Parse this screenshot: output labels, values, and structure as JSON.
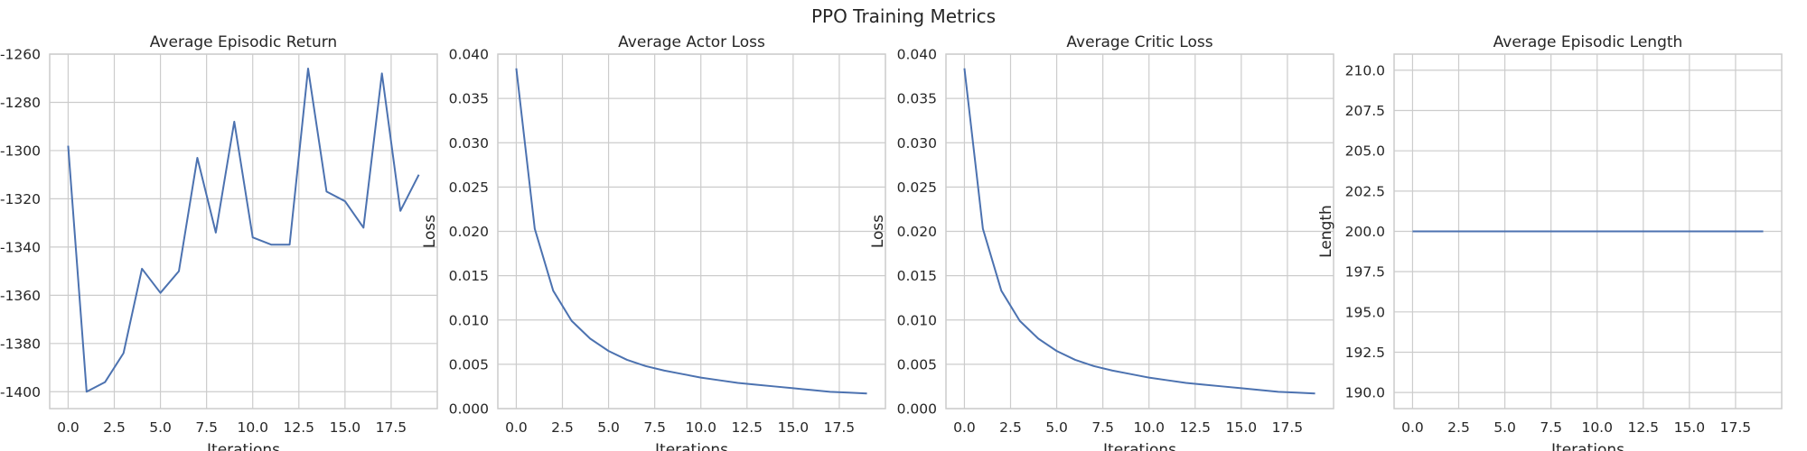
{
  "figure": {
    "title": "PPO Training Metrics"
  },
  "chart_data": [
    {
      "type": "line",
      "title": "Average Episodic Return",
      "xlabel": "Iterations",
      "ylabel": "",
      "x": [
        0,
        1,
        2,
        3,
        4,
        5,
        6,
        7,
        8,
        9,
        10,
        11,
        12,
        13,
        14,
        15,
        16,
        17,
        18,
        19
      ],
      "values": [
        -1298,
        -1400,
        -1396,
        -1384,
        -1349,
        -1359,
        -1350,
        -1303,
        -1334,
        -1288,
        -1336,
        -1339,
        -1339,
        -1266,
        -1317,
        -1321,
        -1332,
        -1268,
        -1325,
        -1310
      ],
      "xlim": [
        -1,
        20
      ],
      "ylim": [
        -1407,
        -1260
      ],
      "xticks": [
        0,
        2.5,
        5,
        7.5,
        10,
        12.5,
        15,
        17.5
      ],
      "xtick_labels": [
        "0.0",
        "2.5",
        "5.0",
        "7.5",
        "10.0",
        "12.5",
        "15.0",
        "17.5"
      ],
      "yticks": [
        -1260,
        -1280,
        -1300,
        -1320,
        -1340,
        -1360,
        -1380,
        -1400
      ],
      "ytick_labels": [
        "-1260",
        "-1280",
        "-1300",
        "-1320",
        "-1340",
        "-1360",
        "-1380",
        "-1400"
      ],
      "grid": true,
      "color": "#4c72b0"
    },
    {
      "type": "line",
      "title": "Average Actor Loss",
      "xlabel": "Iterations",
      "ylabel": "Loss",
      "x": [
        0,
        1,
        2,
        3,
        4,
        5,
        6,
        7,
        8,
        9,
        10,
        11,
        12,
        13,
        14,
        15,
        16,
        17,
        18,
        19
      ],
      "values": [
        0.0384,
        0.0203,
        0.0133,
        0.0099,
        0.0079,
        0.0065,
        0.0055,
        0.0048,
        0.0043,
        0.0039,
        0.0035,
        0.0032,
        0.0029,
        0.0027,
        0.0025,
        0.0023,
        0.0021,
        0.0019,
        0.0018,
        0.0017
      ],
      "xlim": [
        -1,
        20
      ],
      "ylim": [
        0,
        0.04
      ],
      "xticks": [
        0,
        2.5,
        5,
        7.5,
        10,
        12.5,
        15,
        17.5
      ],
      "xtick_labels": [
        "0.0",
        "2.5",
        "5.0",
        "7.5",
        "10.0",
        "12.5",
        "15.0",
        "17.5"
      ],
      "yticks": [
        0,
        0.005,
        0.01,
        0.015,
        0.02,
        0.025,
        0.03,
        0.035,
        0.04
      ],
      "ytick_labels": [
        "0.000",
        "0.005",
        "0.010",
        "0.015",
        "0.020",
        "0.025",
        "0.030",
        "0.035",
        "0.040"
      ],
      "grid": true,
      "color": "#4c72b0"
    },
    {
      "type": "line",
      "title": "Average Critic Loss",
      "xlabel": "Iterations",
      "ylabel": "Loss",
      "x": [
        0,
        1,
        2,
        3,
        4,
        5,
        6,
        7,
        8,
        9,
        10,
        11,
        12,
        13,
        14,
        15,
        16,
        17,
        18,
        19
      ],
      "values": [
        0.0384,
        0.0203,
        0.0133,
        0.0099,
        0.0079,
        0.0065,
        0.0055,
        0.0048,
        0.0043,
        0.0039,
        0.0035,
        0.0032,
        0.0029,
        0.0027,
        0.0025,
        0.0023,
        0.0021,
        0.0019,
        0.0018,
        0.0017
      ],
      "xlim": [
        -1,
        20
      ],
      "ylim": [
        0,
        0.04
      ],
      "xticks": [
        0,
        2.5,
        5,
        7.5,
        10,
        12.5,
        15,
        17.5
      ],
      "xtick_labels": [
        "0.0",
        "2.5",
        "5.0",
        "7.5",
        "10.0",
        "12.5",
        "15.0",
        "17.5"
      ],
      "yticks": [
        0,
        0.005,
        0.01,
        0.015,
        0.02,
        0.025,
        0.03,
        0.035,
        0.04
      ],
      "ytick_labels": [
        "0.000",
        "0.005",
        "0.010",
        "0.015",
        "0.020",
        "0.025",
        "0.030",
        "0.035",
        "0.040"
      ],
      "grid": true,
      "color": "#4c72b0"
    },
    {
      "type": "line",
      "title": "Average Episodic Length",
      "xlabel": "Iterations",
      "ylabel": "Length",
      "x": [
        0,
        1,
        2,
        3,
        4,
        5,
        6,
        7,
        8,
        9,
        10,
        11,
        12,
        13,
        14,
        15,
        16,
        17,
        18,
        19
      ],
      "values": [
        200,
        200,
        200,
        200,
        200,
        200,
        200,
        200,
        200,
        200,
        200,
        200,
        200,
        200,
        200,
        200,
        200,
        200,
        200,
        200
      ],
      "xlim": [
        -1,
        20
      ],
      "ylim": [
        189,
        211
      ],
      "xticks": [
        0,
        2.5,
        5,
        7.5,
        10,
        12.5,
        15,
        17.5
      ],
      "xtick_labels": [
        "0.0",
        "2.5",
        "5.0",
        "7.5",
        "10.0",
        "12.5",
        "15.0",
        "17.5"
      ],
      "yticks": [
        190,
        192.5,
        195,
        197.5,
        200,
        202.5,
        205,
        207.5,
        210
      ],
      "ytick_labels": [
        "190.0",
        "192.5",
        "195.0",
        "197.5",
        "200.0",
        "202.5",
        "205.0",
        "207.5",
        "210.0"
      ],
      "grid": true,
      "color": "#4c72b0"
    }
  ]
}
